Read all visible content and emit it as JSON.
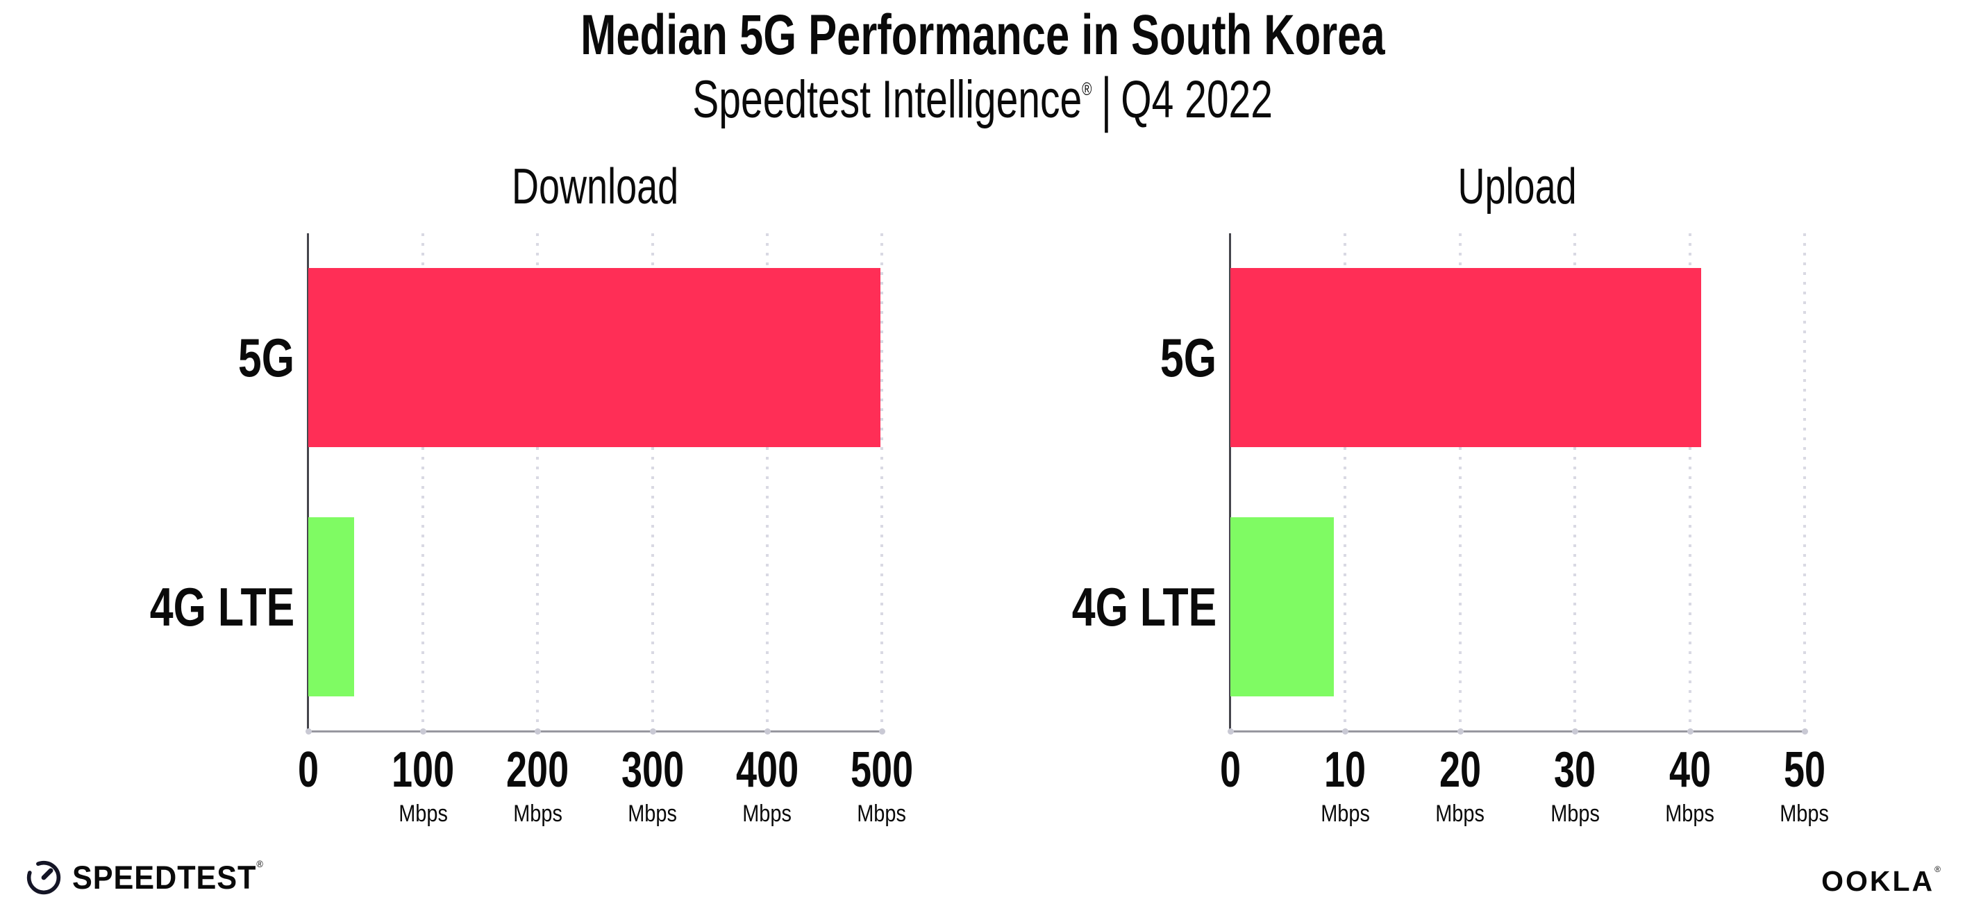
{
  "header": {
    "title": "Median 5G Performance in South Korea",
    "subtitle_brand": "Speedtest Intelligence",
    "registered_mark": "®",
    "separator": "|",
    "subtitle_period": "Q4 2022"
  },
  "chart_data": [
    {
      "type": "bar",
      "orientation": "horizontal",
      "title": "Download",
      "categories": [
        "5G",
        "4G LTE"
      ],
      "values": [
        499,
        40
      ],
      "unit": "Mbps",
      "xlim": [
        0,
        500
      ],
      "xticks": [
        0,
        100,
        200,
        300,
        400,
        500
      ],
      "grid": "dotted-vertical",
      "legend": "none",
      "bar_colors": [
        "#FF2E56",
        "#7FFB63"
      ]
    },
    {
      "type": "bar",
      "orientation": "horizontal",
      "title": "Upload",
      "categories": [
        "5G",
        "4G LTE"
      ],
      "values": [
        41,
        9
      ],
      "unit": "Mbps",
      "xlim": [
        0,
        50
      ],
      "xticks": [
        0,
        10,
        20,
        30,
        40,
        50
      ],
      "grid": "dotted-vertical",
      "legend": "none",
      "bar_colors": [
        "#FF2E56",
        "#7FFB63"
      ]
    }
  ],
  "footer": {
    "speedtest_logo_text": "SPEEDTEST",
    "speedtest_mark": "®",
    "ookla_logo_text": "OOKLA",
    "ookla_mark": "®"
  },
  "colors": {
    "bar_5g": "#FF2E56",
    "bar_4g_lte": "#7FFB63",
    "gridline": "#d9d9e3",
    "axis_left": "#46464d",
    "axis_bottom": "#97979f",
    "text": "#0a0a0a"
  }
}
